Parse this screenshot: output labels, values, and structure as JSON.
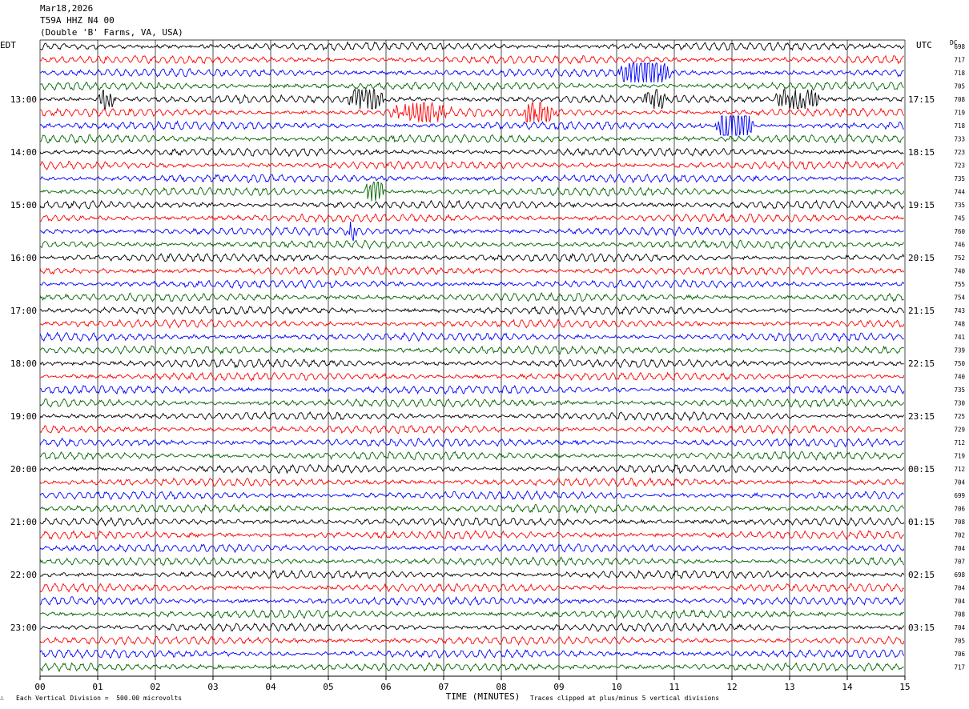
{
  "header": {
    "date": "Mar18,2026",
    "station": "T59A HHZ N4 00",
    "location": "(Double 'B' Farms, VA, USA)"
  },
  "left_timezone": "EDT",
  "right_timezone": "UTC",
  "dc_label": "DC",
  "footer": {
    "scale_note": "Each Vertical Division =  500.00 microvolts",
    "clip_note": "Traces clipped at plus/minus 5 vertical divisions",
    "mark": "∴"
  },
  "trace_colors": [
    "#000000",
    "#ff0000",
    "#0000ff",
    "#006400"
  ],
  "chart_data": {
    "type": "line",
    "title": "T59A HHZ N4 00",
    "xlabel": "TIME (MINUTES)",
    "x_ticks": [
      "00",
      "01",
      "02",
      "03",
      "04",
      "05",
      "06",
      "07",
      "08",
      "09",
      "10",
      "11",
      "12",
      "13",
      "14",
      "15"
    ],
    "xlim": [
      0,
      15
    ],
    "minutes_per_line": 15,
    "left_hour_labels": [
      "13:00",
      "14:00",
      "15:00",
      "16:00",
      "17:00",
      "18:00",
      "19:00",
      "20:00",
      "21:00",
      "22:00",
      "23:00"
    ],
    "right_hour_labels": [
      "17:15",
      "18:15",
      "19:15",
      "20:15",
      "21:15",
      "22:15",
      "23:15",
      "00:15",
      "01:15",
      "02:15",
      "03:15"
    ],
    "dc_offsets": [
      698,
      717,
      718,
      705,
      708,
      719,
      718,
      733,
      723,
      723,
      735,
      744,
      735,
      745,
      760,
      746,
      752,
      740,
      755,
      754,
      743,
      748,
      741,
      739,
      750,
      740,
      735,
      730,
      725,
      729,
      712,
      719,
      712,
      704,
      699,
      706,
      708,
      702,
      704,
      707,
      698,
      704,
      704,
      708,
      704,
      705,
      706,
      717
    ],
    "events": [
      {
        "line": 2,
        "start": 10.0,
        "end": 11.0,
        "amplitude": 2.2
      },
      {
        "line": 4,
        "start": 1.0,
        "end": 1.3,
        "amplitude": 1.3
      },
      {
        "line": 4,
        "start": 5.3,
        "end": 6.0,
        "amplitude": 1.7
      },
      {
        "line": 4,
        "start": 10.4,
        "end": 10.9,
        "amplitude": 1.2
      },
      {
        "line": 4,
        "start": 12.7,
        "end": 13.6,
        "amplitude": 1.5
      },
      {
        "line": 5,
        "start": 6.0,
        "end": 7.2,
        "amplitude": 1.1
      },
      {
        "line": 5,
        "start": 8.3,
        "end": 9.0,
        "amplitude": 1.9
      },
      {
        "line": 6,
        "start": 11.7,
        "end": 12.4,
        "amplitude": 3.2
      },
      {
        "line": 11,
        "start": 5.6,
        "end": 6.0,
        "amplitude": 1.6
      },
      {
        "line": 14,
        "start": 5.3,
        "end": 5.5,
        "amplitude": 1.0
      }
    ]
  }
}
